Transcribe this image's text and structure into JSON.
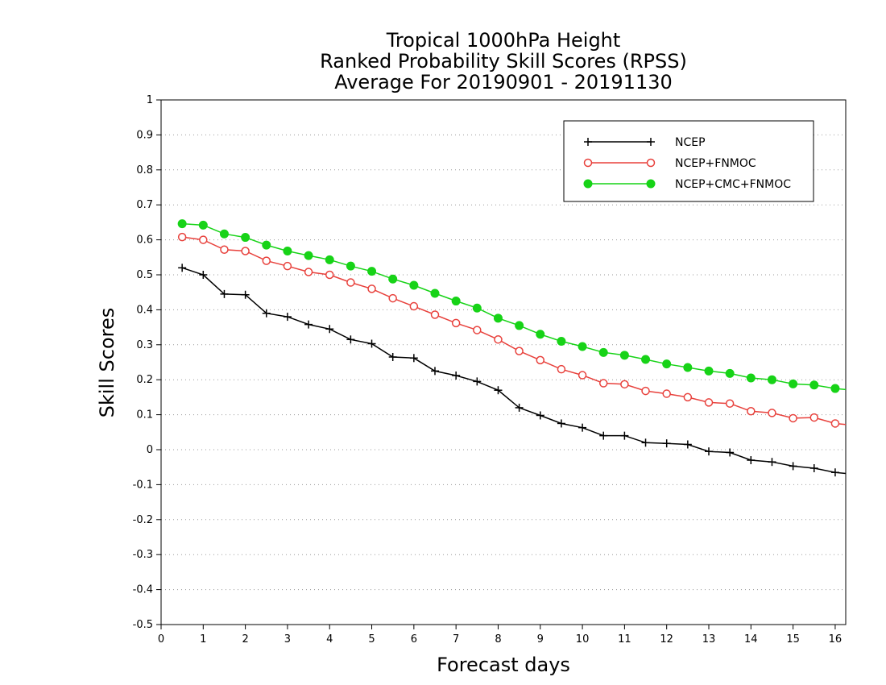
{
  "chart_data": {
    "type": "line",
    "title_lines": [
      "Tropical 1000hPa Height",
      "Ranked Probability Skill Scores (RPSS)",
      "Average For 20190901 - 20191130"
    ],
    "xlabel": "Forecast days",
    "ylabel": "Skill Scores",
    "xlim": [
      0,
      16.25
    ],
    "ylim": [
      -0.5,
      1
    ],
    "xticks": [
      0,
      1,
      2,
      3,
      4,
      5,
      6,
      7,
      8,
      9,
      10,
      11,
      12,
      13,
      14,
      15,
      16
    ],
    "xtick_labels": [
      "0",
      "1",
      "2",
      "3",
      "4",
      "5",
      "6",
      "7",
      "8",
      "9",
      "10",
      "11",
      "12",
      "13",
      "14",
      "15",
      "16"
    ],
    "yticks": [
      -0.5,
      -0.4,
      -0.3,
      -0.2,
      -0.1,
      0,
      0.1,
      0.2,
      0.3,
      0.4,
      0.5,
      0.6,
      0.7,
      0.8,
      0.9,
      1
    ],
    "ytick_labels": [
      "-0.5",
      "-0.4",
      "-0.3",
      "-0.2",
      "-0.1",
      "0",
      "0.1",
      "0.2",
      "0.3",
      "0.4",
      "0.5",
      "0.6",
      "0.7",
      "0.8",
      "0.9",
      "1"
    ],
    "grid": "horizontal dotted",
    "legend_position": "top-right",
    "x": [
      0.5,
      1,
      1.5,
      2,
      2.5,
      3,
      3.5,
      4,
      4.5,
      5,
      5.5,
      6,
      6.5,
      7,
      7.5,
      8,
      8.5,
      9,
      9.5,
      10,
      10.5,
      11,
      11.5,
      12,
      12.5,
      13,
      13.5,
      14,
      14.5,
      15,
      15.5,
      16,
      16.25
    ],
    "series": [
      {
        "name": "NCEP",
        "color": "#000000",
        "marker": "plus",
        "values": [
          0.52,
          0.5,
          0.445,
          0.443,
          0.39,
          0.38,
          0.358,
          0.345,
          0.315,
          0.303,
          0.265,
          0.262,
          0.225,
          0.212,
          0.195,
          0.17,
          0.12,
          0.098,
          0.075,
          0.063,
          0.04,
          0.04,
          0.02,
          0.018,
          0.015,
          -0.005,
          -0.008,
          -0.03,
          -0.035,
          -0.047,
          -0.053,
          -0.065,
          -0.068
        ]
      },
      {
        "name": "NCEP+FNMOC",
        "color": "#e8413c",
        "marker": "open-circle",
        "values": [
          0.608,
          0.6,
          0.572,
          0.568,
          0.54,
          0.525,
          0.508,
          0.5,
          0.478,
          0.46,
          0.433,
          0.41,
          0.386,
          0.362,
          0.342,
          0.315,
          0.282,
          0.256,
          0.23,
          0.213,
          0.19,
          0.187,
          0.168,
          0.16,
          0.15,
          0.135,
          0.132,
          0.11,
          0.105,
          0.09,
          0.092,
          0.075,
          0.072
        ]
      },
      {
        "name": "NCEP+CMC+FNMOC",
        "color": "#17d317",
        "marker": "filled-circle",
        "values": [
          0.646,
          0.642,
          0.617,
          0.607,
          0.585,
          0.568,
          0.555,
          0.543,
          0.525,
          0.51,
          0.488,
          0.47,
          0.447,
          0.425,
          0.405,
          0.376,
          0.355,
          0.33,
          0.31,
          0.295,
          0.278,
          0.27,
          0.258,
          0.245,
          0.235,
          0.225,
          0.218,
          0.205,
          0.2,
          0.188,
          0.185,
          0.175,
          0.172
        ]
      }
    ]
  }
}
